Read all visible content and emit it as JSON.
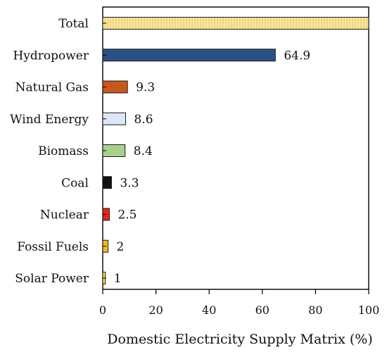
{
  "chart_data": {
    "type": "bar",
    "orientation": "horizontal",
    "categories": [
      "Total",
      "Hydropower",
      "Natural Gas",
      "Wind Energy",
      "Biomass",
      "Coal",
      "Nuclear",
      "Fossil Fuels",
      "Solar Power"
    ],
    "values": [
      100,
      64.9,
      9.3,
      8.6,
      8.4,
      3.3,
      2.5,
      2,
      1
    ],
    "value_labels": [
      "",
      "64.9",
      "9.3",
      "8.6",
      "8.4",
      "3.3",
      "2.5",
      "2",
      "1"
    ],
    "bar_colors": [
      "#fbe7a3",
      "#2b5182",
      "#c8571b",
      "#dce6f4",
      "#a8d08d",
      "#111111",
      "#e0281f",
      "#f3b92a",
      "#f2e04f"
    ],
    "hatched": [
      true,
      false,
      false,
      false,
      false,
      false,
      false,
      false,
      false
    ],
    "xlabel": "Domestic Electricity Supply Matrix (%)",
    "ylabel": "",
    "xlim": [
      0,
      100
    ],
    "xticks": [
      0,
      20,
      40,
      60,
      80,
      100
    ],
    "grid": false,
    "legend": "none"
  }
}
